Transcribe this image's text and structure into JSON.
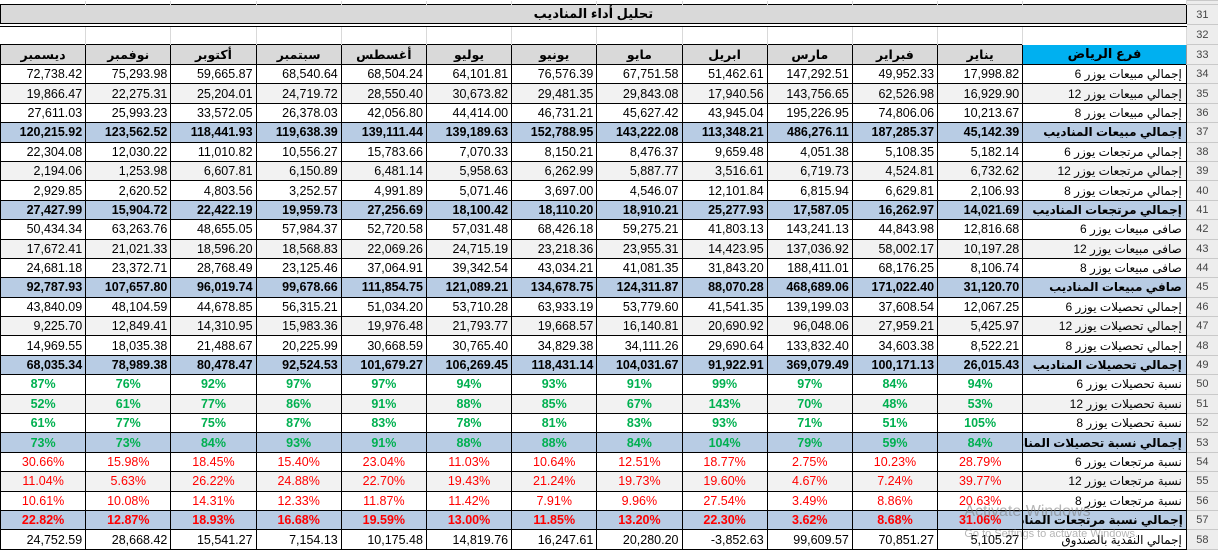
{
  "title": "تحليل أداء المناديب",
  "branch_header": "فرع الرياض",
  "months": [
    "ديسمبر",
    "نوفمبر",
    "أكتوبر",
    "سبتمبر",
    "أغسطس",
    "يوليو",
    "يونيو",
    "مايو",
    "ابريل",
    "مارس",
    "فبراير",
    "يناير"
  ],
  "row_numbers": {
    "title": 31,
    "spacer": 32,
    "header": 33
  },
  "rows": [
    {
      "num": 34,
      "label": "إجمالي مبيعات يوزر 6",
      "type": "num",
      "shade": false,
      "values": [
        "72,738.42",
        "75,293.98",
        "59,665.87",
        "68,540.64",
        "68,504.24",
        "64,101.81",
        "76,576.39",
        "67,751.58",
        "51,462.61",
        "147,292.51",
        "49,952.33",
        "17,998.82"
      ]
    },
    {
      "num": 35,
      "label": "إجمالي مبيعات يوزر 12",
      "type": "num",
      "shade": true,
      "values": [
        "19,866.47",
        "22,275.31",
        "25,204.01",
        "24,719.72",
        "28,550.40",
        "30,673.82",
        "29,481.35",
        "29,843.08",
        "17,940.56",
        "143,756.65",
        "62,526.98",
        "16,929.90"
      ]
    },
    {
      "num": 36,
      "label": "إجمالي مبيعات يوزر 8",
      "type": "num",
      "shade": false,
      "values": [
        "27,611.03",
        "25,993.23",
        "33,572.05",
        "26,378.03",
        "42,056.80",
        "44,414.00",
        "46,731.21",
        "45,627.42",
        "43,945.04",
        "195,226.95",
        "74,806.06",
        "10,213.67"
      ]
    },
    {
      "num": 37,
      "label": "إجمالي مبيعات المناديب",
      "type": "num-total",
      "shade": false,
      "values": [
        "120,215.92",
        "123,562.52",
        "118,441.93",
        "119,638.39",
        "139,111.44",
        "139,189.63",
        "152,788.95",
        "143,222.08",
        "113,348.21",
        "486,276.11",
        "187,285.37",
        "45,142.39"
      ]
    },
    {
      "num": 38,
      "label": "إجمالي مرتجعات يوزر 6",
      "type": "num",
      "shade": false,
      "values": [
        "22,304.08",
        "12,030.22",
        "11,010.82",
        "10,556.27",
        "15,783.66",
        "7,070.33",
        "8,150.21",
        "8,476.37",
        "9,659.48",
        "4,051.38",
        "5,108.35",
        "5,182.14"
      ]
    },
    {
      "num": 39,
      "label": "إجمالي مرتجعات يوزر 12",
      "type": "num",
      "shade": true,
      "values": [
        "2,194.06",
        "1,253.98",
        "6,607.81",
        "6,150.89",
        "6,481.14",
        "5,958.63",
        "6,262.99",
        "5,887.77",
        "3,516.61",
        "6,719.73",
        "4,524.81",
        "6,732.62"
      ]
    },
    {
      "num": 40,
      "label": "إجمالي مرتجعات يوزر 8",
      "type": "num",
      "shade": false,
      "values": [
        "2,929.85",
        "2,620.52",
        "4,803.56",
        "3,252.57",
        "4,991.89",
        "5,071.46",
        "3,697.00",
        "4,546.07",
        "12,101.84",
        "6,815.94",
        "6,629.81",
        "2,106.93"
      ]
    },
    {
      "num": 41,
      "label": "إجمالي مرتجعات المناديب",
      "type": "num-total",
      "shade": false,
      "values": [
        "27,427.99",
        "15,904.72",
        "22,422.19",
        "19,959.73",
        "27,256.69",
        "18,100.42",
        "18,110.20",
        "18,910.21",
        "25,277.93",
        "17,587.05",
        "16,262.97",
        "14,021.69"
      ]
    },
    {
      "num": 42,
      "label": "صافى مبيعات يوزر 6",
      "type": "num",
      "shade": false,
      "values": [
        "50,434.34",
        "63,263.76",
        "48,655.05",
        "57,984.37",
        "52,720.58",
        "57,031.48",
        "68,426.18",
        "59,275.21",
        "41,803.13",
        "143,241.13",
        "44,843.98",
        "12,816.68"
      ]
    },
    {
      "num": 43,
      "label": "صافى مبيعات يوزر 12",
      "type": "num",
      "shade": true,
      "values": [
        "17,672.41",
        "21,021.33",
        "18,596.20",
        "18,568.83",
        "22,069.26",
        "24,715.19",
        "23,218.36",
        "23,955.31",
        "14,423.95",
        "137,036.92",
        "58,002.17",
        "10,197.28"
      ]
    },
    {
      "num": 44,
      "label": "صافى مبيعات يوزر 8",
      "type": "num",
      "shade": false,
      "values": [
        "24,681.18",
        "23,372.71",
        "28,768.49",
        "23,125.46",
        "37,064.91",
        "39,342.54",
        "43,034.21",
        "41,081.35",
        "31,843.20",
        "188,411.01",
        "68,176.25",
        "8,106.74"
      ]
    },
    {
      "num": 45,
      "label": "صافي مبيعات المناديب",
      "type": "num-total",
      "shade": false,
      "values": [
        "92,787.93",
        "107,657.80",
        "96,019.74",
        "99,678.66",
        "111,854.75",
        "121,089.21",
        "134,678.75",
        "124,311.87",
        "88,070.28",
        "468,689.06",
        "171,022.40",
        "31,120.70"
      ]
    },
    {
      "num": 46,
      "label": "إجمالي تحصيلات يوزر 6",
      "type": "num",
      "shade": false,
      "values": [
        "43,840.09",
        "48,104.59",
        "44,678.85",
        "56,315.21",
        "51,034.20",
        "53,710.28",
        "63,933.19",
        "53,779.60",
        "41,541.35",
        "139,199.03",
        "37,608.54",
        "12,067.25"
      ]
    },
    {
      "num": 47,
      "label": "إجمالي تحصيلات يوزر 12",
      "type": "num",
      "shade": true,
      "values": [
        "9,225.70",
        "12,849.41",
        "14,310.95",
        "15,983.36",
        "19,976.48",
        "21,793.77",
        "19,668.57",
        "16,140.81",
        "20,690.92",
        "96,048.06",
        "27,959.21",
        "5,425.97"
      ]
    },
    {
      "num": 48,
      "label": "إجمالي تحصيلات يوزر 8",
      "type": "num",
      "shade": false,
      "values": [
        "14,969.55",
        "18,035.38",
        "21,488.67",
        "20,225.99",
        "30,668.59",
        "30,765.40",
        "34,829.38",
        "34,111.26",
        "29,690.64",
        "133,832.40",
        "34,603.38",
        "8,522.21"
      ]
    },
    {
      "num": 49,
      "label": "إجمالي تحصيلات المناديب",
      "type": "num-total",
      "shade": false,
      "values": [
        "68,035.34",
        "78,989.38",
        "80,478.47",
        "92,524.53",
        "101,679.27",
        "106,269.45",
        "118,431.14",
        "104,031.67",
        "91,922.91",
        "369,079.49",
        "100,171.13",
        "26,015.43"
      ]
    },
    {
      "num": 50,
      "label": "نسبة تحصيلات يوزر 6",
      "type": "pct-green",
      "shade": false,
      "values": [
        "87%",
        "76%",
        "92%",
        "97%",
        "97%",
        "94%",
        "93%",
        "91%",
        "99%",
        "97%",
        "84%",
        "94%"
      ]
    },
    {
      "num": 51,
      "label": "نسبة تحصيلات يوزر 12",
      "type": "pct-green",
      "shade": true,
      "values": [
        "52%",
        "61%",
        "77%",
        "86%",
        "91%",
        "88%",
        "85%",
        "67%",
        "143%",
        "70%",
        "48%",
        "53%"
      ]
    },
    {
      "num": 52,
      "label": "نسبة تحصيلات يوزر 8",
      "type": "pct-green",
      "shade": false,
      "values": [
        "61%",
        "77%",
        "75%",
        "87%",
        "83%",
        "78%",
        "81%",
        "83%",
        "93%",
        "71%",
        "51%",
        "105%"
      ]
    },
    {
      "num": 53,
      "label": "إجمالي نسبة تحصيلات المناديب",
      "type": "pct-green-total",
      "shade": false,
      "values": [
        "73%",
        "73%",
        "84%",
        "93%",
        "91%",
        "88%",
        "88%",
        "84%",
        "104%",
        "79%",
        "59%",
        "84%"
      ]
    },
    {
      "num": 54,
      "label": "نسبة مرتجعات يوزر 6",
      "type": "pct-red",
      "shade": false,
      "values": [
        "30.66%",
        "15.98%",
        "18.45%",
        "15.40%",
        "23.04%",
        "11.03%",
        "10.64%",
        "12.51%",
        "18.77%",
        "2.75%",
        "10.23%",
        "28.79%"
      ]
    },
    {
      "num": 55,
      "label": "نسبة مرتجعات يوزر 12",
      "type": "pct-red",
      "shade": true,
      "values": [
        "11.04%",
        "5.63%",
        "26.22%",
        "24.88%",
        "22.70%",
        "19.43%",
        "21.24%",
        "19.73%",
        "19.60%",
        "4.67%",
        "7.24%",
        "39.77%"
      ]
    },
    {
      "num": 56,
      "label": "نسبة مرتجعات يوزر 8",
      "type": "pct-red",
      "shade": false,
      "values": [
        "10.61%",
        "10.08%",
        "14.31%",
        "12.33%",
        "11.87%",
        "11.42%",
        "7.91%",
        "9.96%",
        "27.54%",
        "3.49%",
        "8.86%",
        "20.63%"
      ]
    },
    {
      "num": 57,
      "label": "إجمالي نسبة مرتجعات المناديب",
      "type": "pct-red-total",
      "shade": false,
      "values": [
        "22.82%",
        "12.87%",
        "18.93%",
        "16.68%",
        "19.59%",
        "13.00%",
        "11.85%",
        "13.20%",
        "22.30%",
        "3.62%",
        "8.68%",
        "31.06%"
      ]
    },
    {
      "num": 58,
      "label": "إجمالي النقدية بالصندوق",
      "type": "num",
      "shade": false,
      "values": [
        "24,752.59",
        "28,668.42",
        "15,541.27",
        "7,154.13",
        "10,175.48",
        "14,819.76",
        "16,247.61",
        "20,280.20",
        "-3,852.63",
        "99,609.57",
        "70,851.27",
        "5,105.27"
      ]
    }
  ],
  "watermark": {
    "line1": "Activate Windows",
    "line2": "Go to Settings to activate Windows."
  },
  "colors": {
    "total_row_bg": "#B8CCE4",
    "header_bg": "#D9D9D9",
    "branch_bg": "#00B0F0",
    "green": "#00B050",
    "red": "#FF0000",
    "shade": "#F2F2F2"
  }
}
